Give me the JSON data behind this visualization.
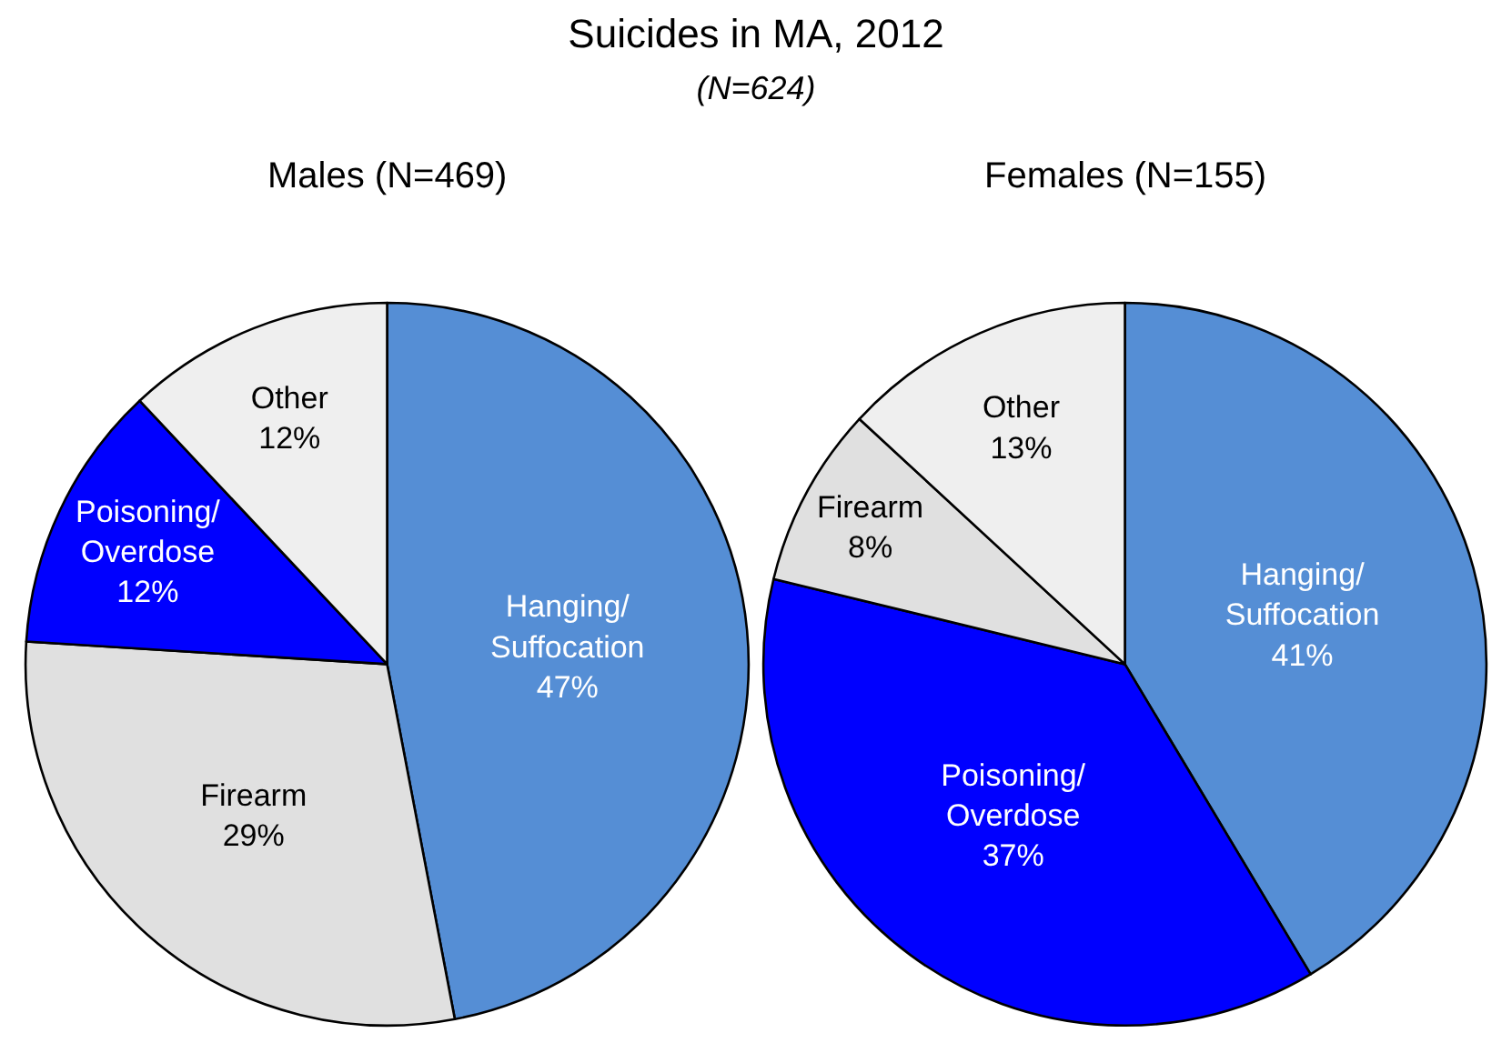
{
  "chart_data": [
    {
      "type": "other",
      "title": "Suicides in MA, 2012",
      "subtitle": "(N=624)"
    },
    {
      "type": "pie",
      "title": "Males (N=469)",
      "categories": [
        "Hanging/\nSuffocation",
        "Firearm",
        "Poisoning/\nOverdose",
        "Other"
      ],
      "values": [
        47,
        29,
        12,
        12
      ],
      "colors": [
        "#558ed5",
        "#e0e0e0",
        "#0000ff",
        "#efefef"
      ],
      "value_labels": [
        "47%",
        "29%",
        "12%",
        "12%"
      ]
    },
    {
      "type": "pie",
      "title": "Females (N=155)",
      "categories": [
        "Hanging/\nSuffocation",
        "Poisoning/\nOverdose",
        "Firearm",
        "Other"
      ],
      "values": [
        41,
        37,
        8,
        13
      ],
      "colors": [
        "#558ed5",
        "#0000ff",
        "#e0e0e0",
        "#efefef"
      ],
      "value_labels": [
        "41%",
        "37%",
        "8%",
        "13%"
      ]
    }
  ]
}
